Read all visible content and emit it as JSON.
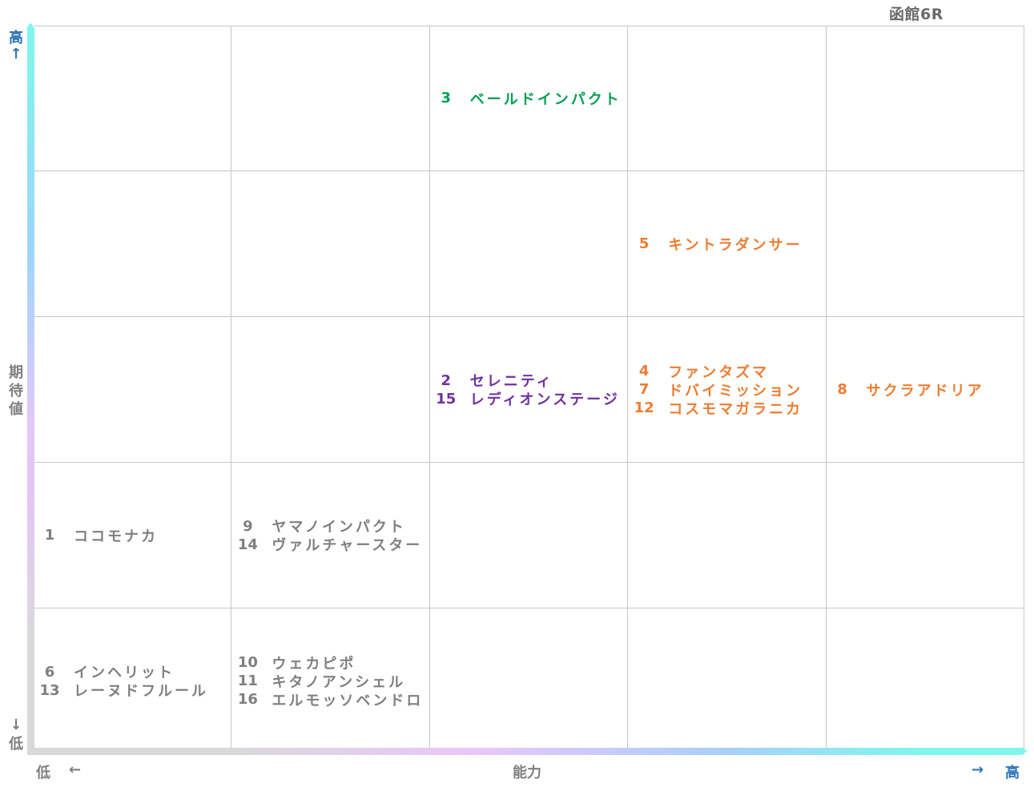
{
  "title": "函館6R",
  "axes": {
    "y_label_chars": [
      "期",
      "待",
      "値"
    ],
    "y_high": "高",
    "y_high_arrow": "↑",
    "y_low_arrow": "↓",
    "y_low": "低",
    "x_label": "能力",
    "x_low": "低",
    "x_low_arrow": "←",
    "x_high_arrow": "→",
    "x_high": "高"
  },
  "colors": {
    "green": "#00a050",
    "orange": "#ed7d31",
    "purple": "#7030a0",
    "gray": "#7f7f7f",
    "axis_high_text": "#2e75b6"
  },
  "chart_data": {
    "type": "table",
    "xlabel": "能力",
    "ylabel": "期待値",
    "columns": 5,
    "rows": 5,
    "horses": [
      {
        "num": "3",
        "name": "ベールドインパクト",
        "col": 2,
        "row": 0,
        "color": "green"
      },
      {
        "num": "5",
        "name": "キントラダンサー",
        "col": 3,
        "row": 1,
        "color": "orange"
      },
      {
        "num": "2",
        "name": "セレニティ",
        "col": 2,
        "row": 2,
        "color": "purple"
      },
      {
        "num": "15",
        "name": "レディオンステージ",
        "col": 2,
        "row": 2,
        "color": "purple"
      },
      {
        "num": "4",
        "name": "ファンタズマ",
        "col": 3,
        "row": 2,
        "color": "orange"
      },
      {
        "num": "7",
        "name": "ドバイミッション",
        "col": 3,
        "row": 2,
        "color": "orange"
      },
      {
        "num": "12",
        "name": "コスモマガラニカ",
        "col": 3,
        "row": 2,
        "color": "orange"
      },
      {
        "num": "8",
        "name": "サクラアドリア",
        "col": 4,
        "row": 2,
        "color": "orange"
      },
      {
        "num": "1",
        "name": "ココモナカ",
        "col": 0,
        "row": 3,
        "color": "gray"
      },
      {
        "num": "9",
        "name": "ヤマノインパクト",
        "col": 1,
        "row": 3,
        "color": "gray"
      },
      {
        "num": "14",
        "name": "ヴァルチャースター",
        "col": 1,
        "row": 3,
        "color": "gray"
      },
      {
        "num": "6",
        "name": "インヘリット",
        "col": 0,
        "row": 4,
        "color": "gray"
      },
      {
        "num": "13",
        "name": "レーヌドフルール",
        "col": 0,
        "row": 4,
        "color": "gray"
      },
      {
        "num": "10",
        "name": "ウェカピポ",
        "col": 1,
        "row": 4,
        "color": "gray"
      },
      {
        "num": "11",
        "name": "キタノアンシェル",
        "col": 1,
        "row": 4,
        "color": "gray"
      },
      {
        "num": "16",
        "name": "エルモッソベンドロ",
        "col": 1,
        "row": 4,
        "color": "gray"
      }
    ]
  }
}
